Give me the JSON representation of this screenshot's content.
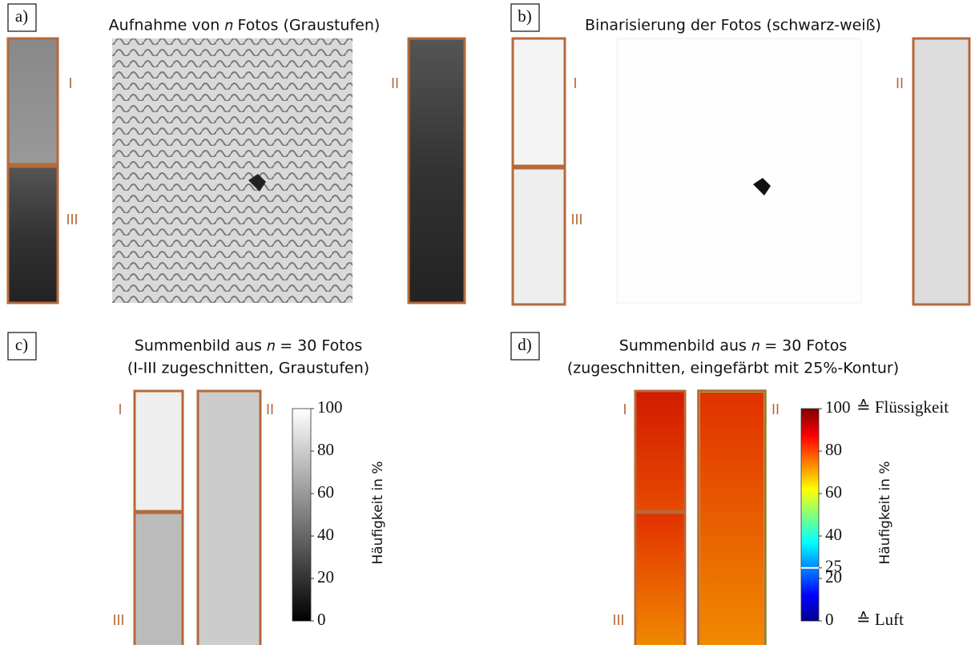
{
  "panels": [
    {
      "label": "a)",
      "title": [
        "Aufnahme von 𝑛 Fotos (Graustufen)"
      ],
      "regions": [
        "I",
        "III",
        "II"
      ]
    },
    {
      "label": "b)",
      "title": [
        "Binarisierung der Fotos (schwarz-weiß)"
      ],
      "regions": [
        "I",
        "III",
        "II"
      ]
    },
    {
      "label": "c)",
      "title": [
        "Summenbild aus 𝑛 = 30 Fotos",
        "(I-III zugeschnitten, Graustufen)"
      ],
      "regions": [
        "I",
        "III",
        "II"
      ],
      "colorbar": {
        "colormap": "gray",
        "ticks": [
          100,
          80,
          60,
          40,
          20,
          0
        ],
        "range": [
          0,
          100
        ],
        "label": "Häufigkeit in %"
      }
    },
    {
      "label": "d)",
      "title": [
        "Summenbild aus 𝑛 = 30 Fotos",
        "(zugeschnitten, eingefärbt mit 25%-Kontur)"
      ],
      "regions": [
        "I",
        "III",
        "II"
      ],
      "colorbar": {
        "colormap": "jet",
        "ticks": [
          100,
          80,
          60,
          40,
          25,
          20,
          0
        ],
        "range": [
          0,
          100
        ],
        "label": "Häufigkeit in %",
        "contour": 25,
        "annotations": [
          {
            "value": 100,
            "text": "≙ Flüssigkeit"
          },
          {
            "value": 0,
            "text": "≙ Luft"
          }
        ]
      }
    }
  ]
}
